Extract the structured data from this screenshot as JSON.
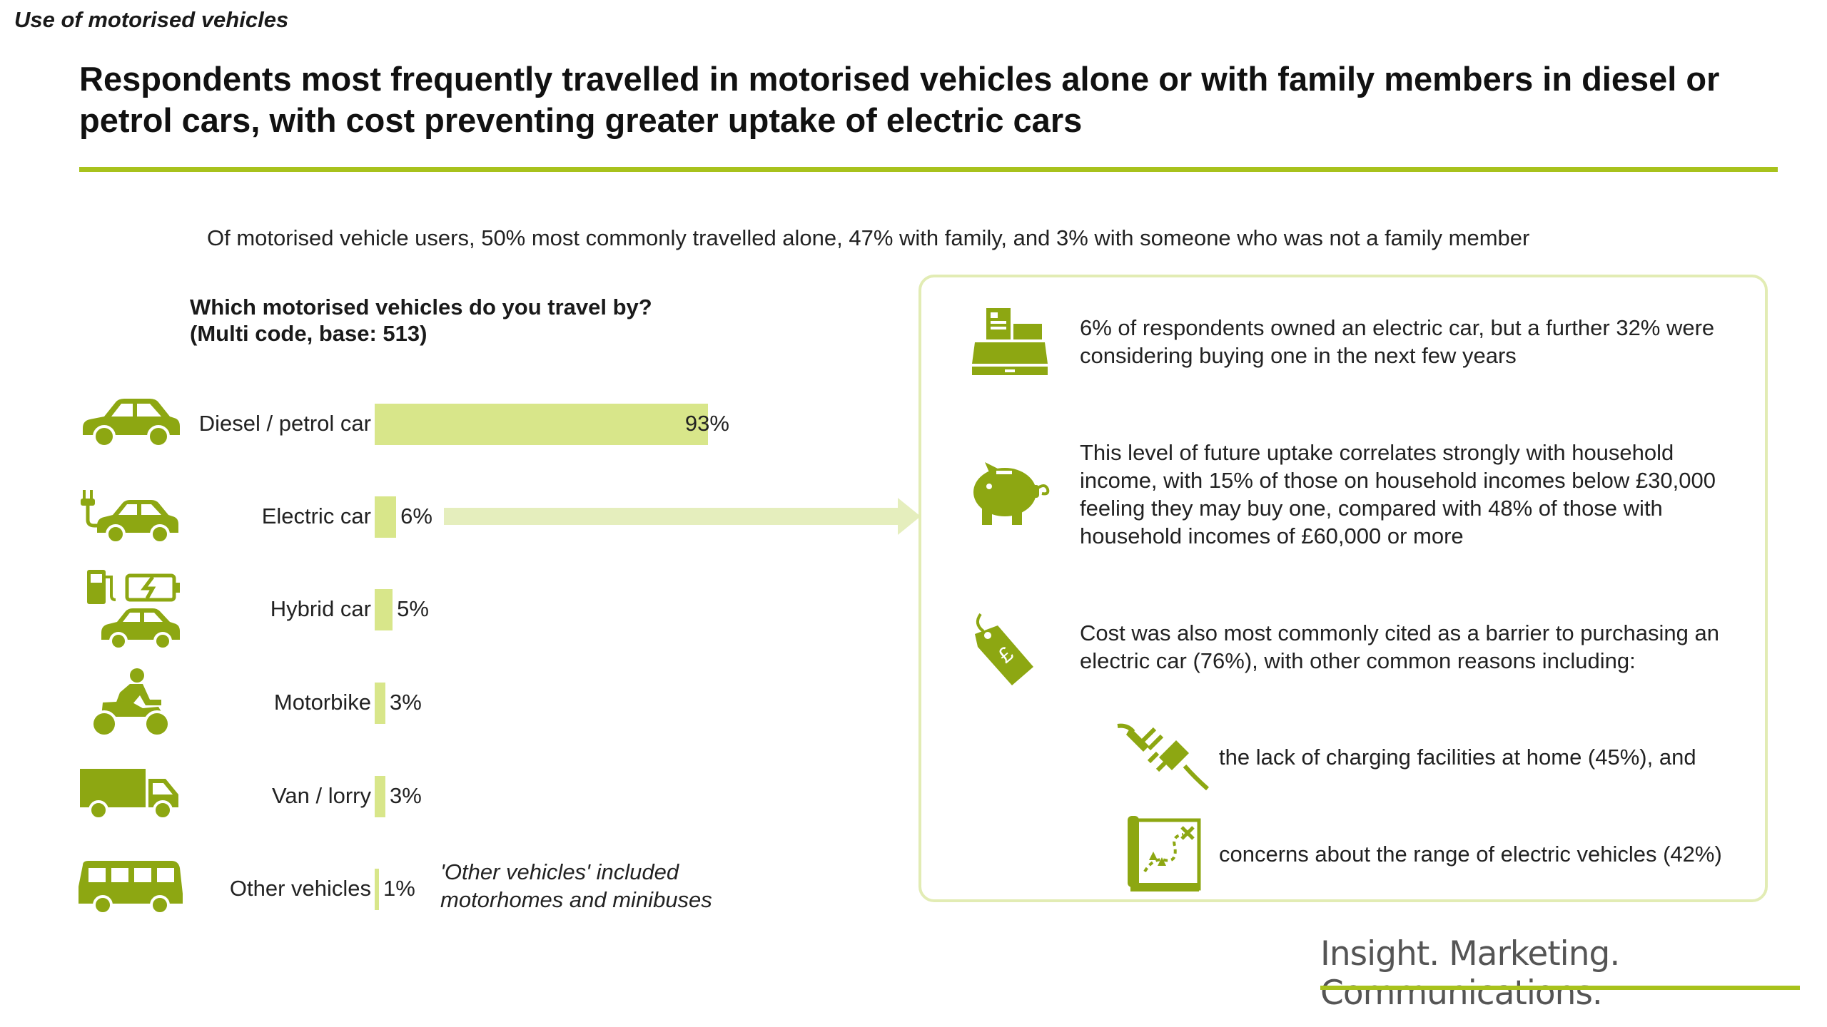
{
  "section_label": "Use of motorised vehicles",
  "heading": "Respondents most frequently travelled in motorised vehicles alone or with family members in diesel or petrol cars, with cost preventing greater uptake of electric cars",
  "summary": "Of motorised vehicle users, 50% most commonly travelled alone, 47% with family, and 3% with someone who was not a family member",
  "question": {
    "line1": "Which motorised vehicles do you travel by?",
    "line2": "(Multi code, base: 513)"
  },
  "colors": {
    "accent": "#a8c21c",
    "bar": "#d8e68a",
    "icon": "#8da712",
    "panel_border": "#e2ecb4"
  },
  "chart_data": {
    "type": "bar",
    "orientation": "horizontal",
    "categories": [
      "Diesel / petrol car",
      "Electric car",
      "Hybrid car",
      "Motorbike",
      "Van / lorry",
      "Other vehicles"
    ],
    "values": [
      93,
      6,
      5,
      3,
      3,
      1
    ],
    "value_labels": [
      "93%",
      "6%",
      "5%",
      "3%",
      "3%",
      "1%"
    ],
    "icons": [
      "car-icon",
      "electric-car-icon",
      "hybrid-car-icon",
      "motorbike-icon",
      "van-icon",
      "minibus-icon"
    ],
    "xlim": [
      0,
      100
    ],
    "grid": false,
    "annotation": {
      "line1": "'Other vehicles' included",
      "line2": "motorhomes and minibuses"
    }
  },
  "insights": [
    {
      "icon": "cash-register-icon",
      "lines": [
        "6% of respondents owned an electric car, but a further 32% were",
        "considering buying one in the next few years"
      ]
    },
    {
      "icon": "piggy-bank-icon",
      "lines": [
        "This level of future uptake correlates strongly with household",
        "income, with 15% of those on household incomes below £30,000",
        "feeling they may buy one, compared with 48% of those with",
        "household incomes of £60,000 or more"
      ]
    },
    {
      "icon": "price-tag-icon",
      "lines": [
        "Cost was also most commonly cited as a barrier to purchasing an",
        "electric car (76%), with other common reasons including:"
      ]
    }
  ],
  "reasons": [
    {
      "icon": "plug-icon",
      "text": "the lack of charging facilities at home (45%), and"
    },
    {
      "icon": "map-icon",
      "text": "concerns about the range of electric vehicles (42%)"
    }
  ],
  "footer": {
    "brand": "Insight. Marketing. Communications."
  }
}
